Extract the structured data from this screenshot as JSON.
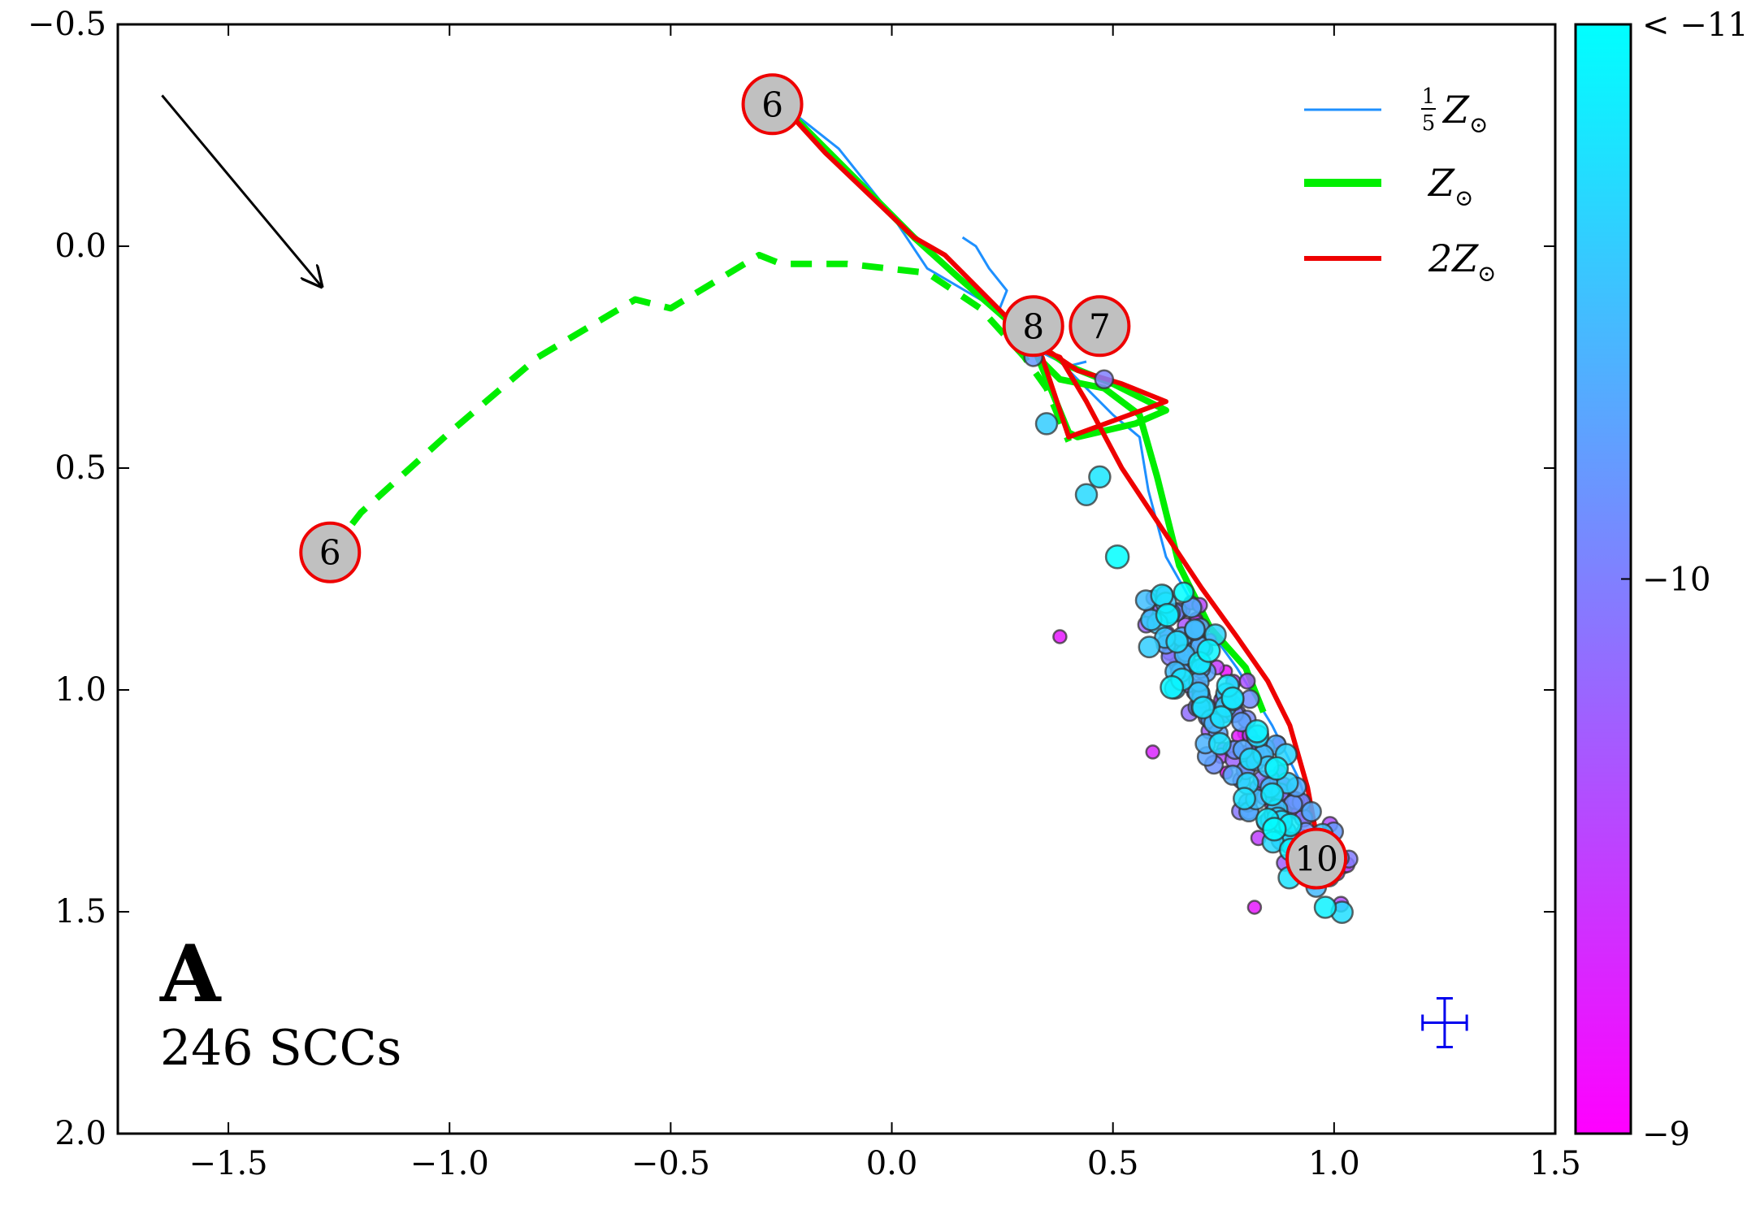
{
  "chart_data": {
    "type": "scatter",
    "panel_label": "A",
    "count_label": "246 SCCs",
    "xlim": [
      -1.75,
      1.5
    ],
    "ylim": [
      2.0,
      -0.5
    ],
    "x_ticks": [
      -1.5,
      -1.0,
      -0.5,
      0.0,
      0.5,
      1.0,
      1.5
    ],
    "x_tick_labels": [
      "−1.5",
      "−1.0",
      "−0.5",
      "0.0",
      "0.5",
      "1.0",
      "1.5"
    ],
    "y_ticks": [
      -0.5,
      0.0,
      0.5,
      1.0,
      1.5,
      2.0
    ],
    "y_tick_labels": [
      "−0.5",
      "0.0",
      "0.5",
      "1.0",
      "1.5",
      "2.0"
    ],
    "legend": {
      "position": "top-right",
      "entries": [
        {
          "label_frac_num": "1",
          "label_frac_den": "5",
          "label_main": "Z",
          "label_sub": "⊙",
          "color": "#1e90ff",
          "series": "one_fifth_solar"
        },
        {
          "label_frac_num": "",
          "label_frac_den": "",
          "label_main": "Z",
          "label_sub": "⊙",
          "color": "#00ee00",
          "series": "solar"
        },
        {
          "label_frac_num": "",
          "label_frac_den": "",
          "label_main": "2Z",
          "label_sub": "⊙",
          "color": "#ee0000",
          "series": "two_solar"
        }
      ]
    },
    "colorbar": {
      "min": -11,
      "max": -9,
      "ticks": [
        -11,
        -10,
        -9
      ],
      "tick_labels": [
        "< −11",
        "−10",
        "−9"
      ],
      "color_top": "#00ffff",
      "color_bottom": "#ff00ff"
    },
    "series": [
      {
        "name": "one_fifth_solar",
        "color": "#1e90ff",
        "style": "solid",
        "width": 3,
        "points": [
          [
            -0.26,
            -0.33
          ],
          [
            -0.12,
            -0.22
          ],
          [
            0.0,
            -0.07
          ],
          [
            0.08,
            0.05
          ],
          [
            0.2,
            0.12
          ],
          [
            0.3,
            0.18
          ],
          [
            0.38,
            0.26
          ],
          [
            0.44,
            0.32
          ],
          [
            0.5,
            0.38
          ],
          [
            0.56,
            0.43
          ],
          [
            0.58,
            0.55
          ],
          [
            0.62,
            0.7
          ],
          [
            0.7,
            0.84
          ],
          [
            0.78,
            0.95
          ],
          [
            0.86,
            1.08
          ],
          [
            0.92,
            1.2
          ],
          [
            0.97,
            1.35
          ]
        ]
      },
      {
        "name": "one_fifth_solar_loop",
        "color": "#1e90ff",
        "style": "solid",
        "width": 3,
        "points": [
          [
            0.16,
            -0.02
          ],
          [
            0.19,
            0.0
          ],
          [
            0.22,
            0.05
          ],
          [
            0.26,
            0.1
          ],
          [
            0.24,
            0.15
          ],
          [
            0.3,
            0.2
          ],
          [
            0.34,
            0.24
          ],
          [
            0.4,
            0.27
          ],
          [
            0.44,
            0.26
          ]
        ]
      },
      {
        "name": "solar",
        "color": "#00ee00",
        "style": "solid",
        "width": 8,
        "points": [
          [
            -0.26,
            -0.33
          ],
          [
            -0.14,
            -0.21
          ],
          [
            0.05,
            -0.02
          ],
          [
            0.15,
            0.07
          ],
          [
            0.3,
            0.2
          ],
          [
            0.4,
            0.27
          ],
          [
            0.5,
            0.31
          ],
          [
            0.62,
            0.37
          ],
          [
            0.55,
            0.4
          ],
          [
            0.42,
            0.43
          ],
          [
            0.4,
            0.42
          ],
          [
            0.33,
            0.25
          ],
          [
            0.38,
            0.3
          ],
          [
            0.48,
            0.32
          ],
          [
            0.56,
            0.38
          ],
          [
            0.6,
            0.52
          ],
          [
            0.65,
            0.72
          ],
          [
            0.72,
            0.86
          ],
          [
            0.8,
            0.95
          ],
          [
            0.84,
            1.05
          ]
        ]
      },
      {
        "name": "solar_dashed",
        "color": "#00ee00",
        "style": "dashed",
        "width": 8,
        "points": [
          [
            -1.27,
            0.69
          ],
          [
            -1.2,
            0.6
          ],
          [
            -1.0,
            0.42
          ],
          [
            -0.8,
            0.25
          ],
          [
            -0.58,
            0.12
          ],
          [
            -0.5,
            0.14
          ],
          [
            -0.3,
            0.02
          ],
          [
            -0.25,
            0.04
          ],
          [
            -0.1,
            0.04
          ],
          [
            0.08,
            0.06
          ],
          [
            0.2,
            0.14
          ],
          [
            0.3,
            0.25
          ],
          [
            0.35,
            0.32
          ],
          [
            0.4,
            0.44
          ]
        ]
      },
      {
        "name": "two_solar",
        "color": "#ee0000",
        "style": "solid",
        "width": 6,
        "points": [
          [
            -0.26,
            -0.33
          ],
          [
            -0.15,
            -0.21
          ],
          [
            0.05,
            -0.02
          ],
          [
            0.12,
            0.02
          ],
          [
            0.3,
            0.2
          ],
          [
            0.42,
            0.28
          ],
          [
            0.52,
            0.31
          ],
          [
            0.62,
            0.35
          ],
          [
            0.4,
            0.43
          ],
          [
            0.34,
            0.25
          ],
          [
            0.3,
            0.22
          ],
          [
            0.38,
            0.25
          ],
          [
            0.44,
            0.35
          ],
          [
            0.52,
            0.5
          ],
          [
            0.62,
            0.65
          ],
          [
            0.7,
            0.77
          ],
          [
            0.78,
            0.88
          ],
          [
            0.85,
            0.98
          ],
          [
            0.9,
            1.08
          ],
          [
            0.94,
            1.22
          ],
          [
            0.97,
            1.38
          ]
        ]
      }
    ],
    "age_markers": [
      {
        "label": "6",
        "x": -0.27,
        "y": -0.32
      },
      {
        "label": "6",
        "x": -1.27,
        "y": 0.69
      },
      {
        "label": "8",
        "x": 0.32,
        "y": 0.18
      },
      {
        "label": "7",
        "x": 0.47,
        "y": 0.18
      },
      {
        "label": "10",
        "x": 0.96,
        "y": 1.38
      }
    ],
    "extinction_arrow": {
      "from": [
        -1.65,
        -0.34
      ],
      "to": [
        -1.29,
        0.09
      ]
    },
    "error_bar": {
      "x": 1.25,
      "y": 1.75,
      "xerr": 0.05,
      "yerr": 0.055,
      "color": "#0000ee"
    },
    "scatter_seed_points": [
      {
        "x": 0.32,
        "y": 0.25,
        "c": -10.2,
        "s": 11
      },
      {
        "x": 0.35,
        "y": 0.4,
        "c": -10.6,
        "s": 13
      },
      {
        "x": 0.48,
        "y": 0.3,
        "c": -10.0,
        "s": 11
      },
      {
        "x": 0.47,
        "y": 0.52,
        "c": -10.8,
        "s": 13
      },
      {
        "x": 0.44,
        "y": 0.56,
        "c": -10.7,
        "s": 13
      },
      {
        "x": 0.51,
        "y": 0.7,
        "c": -11.0,
        "s": 14
      },
      {
        "x": 0.38,
        "y": 0.88,
        "c": -9.2,
        "s": 8
      },
      {
        "x": 0.82,
        "y": 1.49,
        "c": -9.2,
        "s": 8
      },
      {
        "x": 0.98,
        "y": 1.49,
        "c": -10.9,
        "s": 13
      },
      {
        "x": 0.59,
        "y": 1.14,
        "c": -9.3,
        "s": 8
      },
      {
        "x": 0.66,
        "y": 0.78,
        "c": -11.0,
        "s": 12
      }
    ],
    "scatter_cluster": {
      "count": 235,
      "x_start": 0.62,
      "x_end": 0.99,
      "y_start": 0.83,
      "y_end": 1.45,
      "spread_x": 0.06,
      "c_min": -11,
      "c_max": -9
    }
  }
}
